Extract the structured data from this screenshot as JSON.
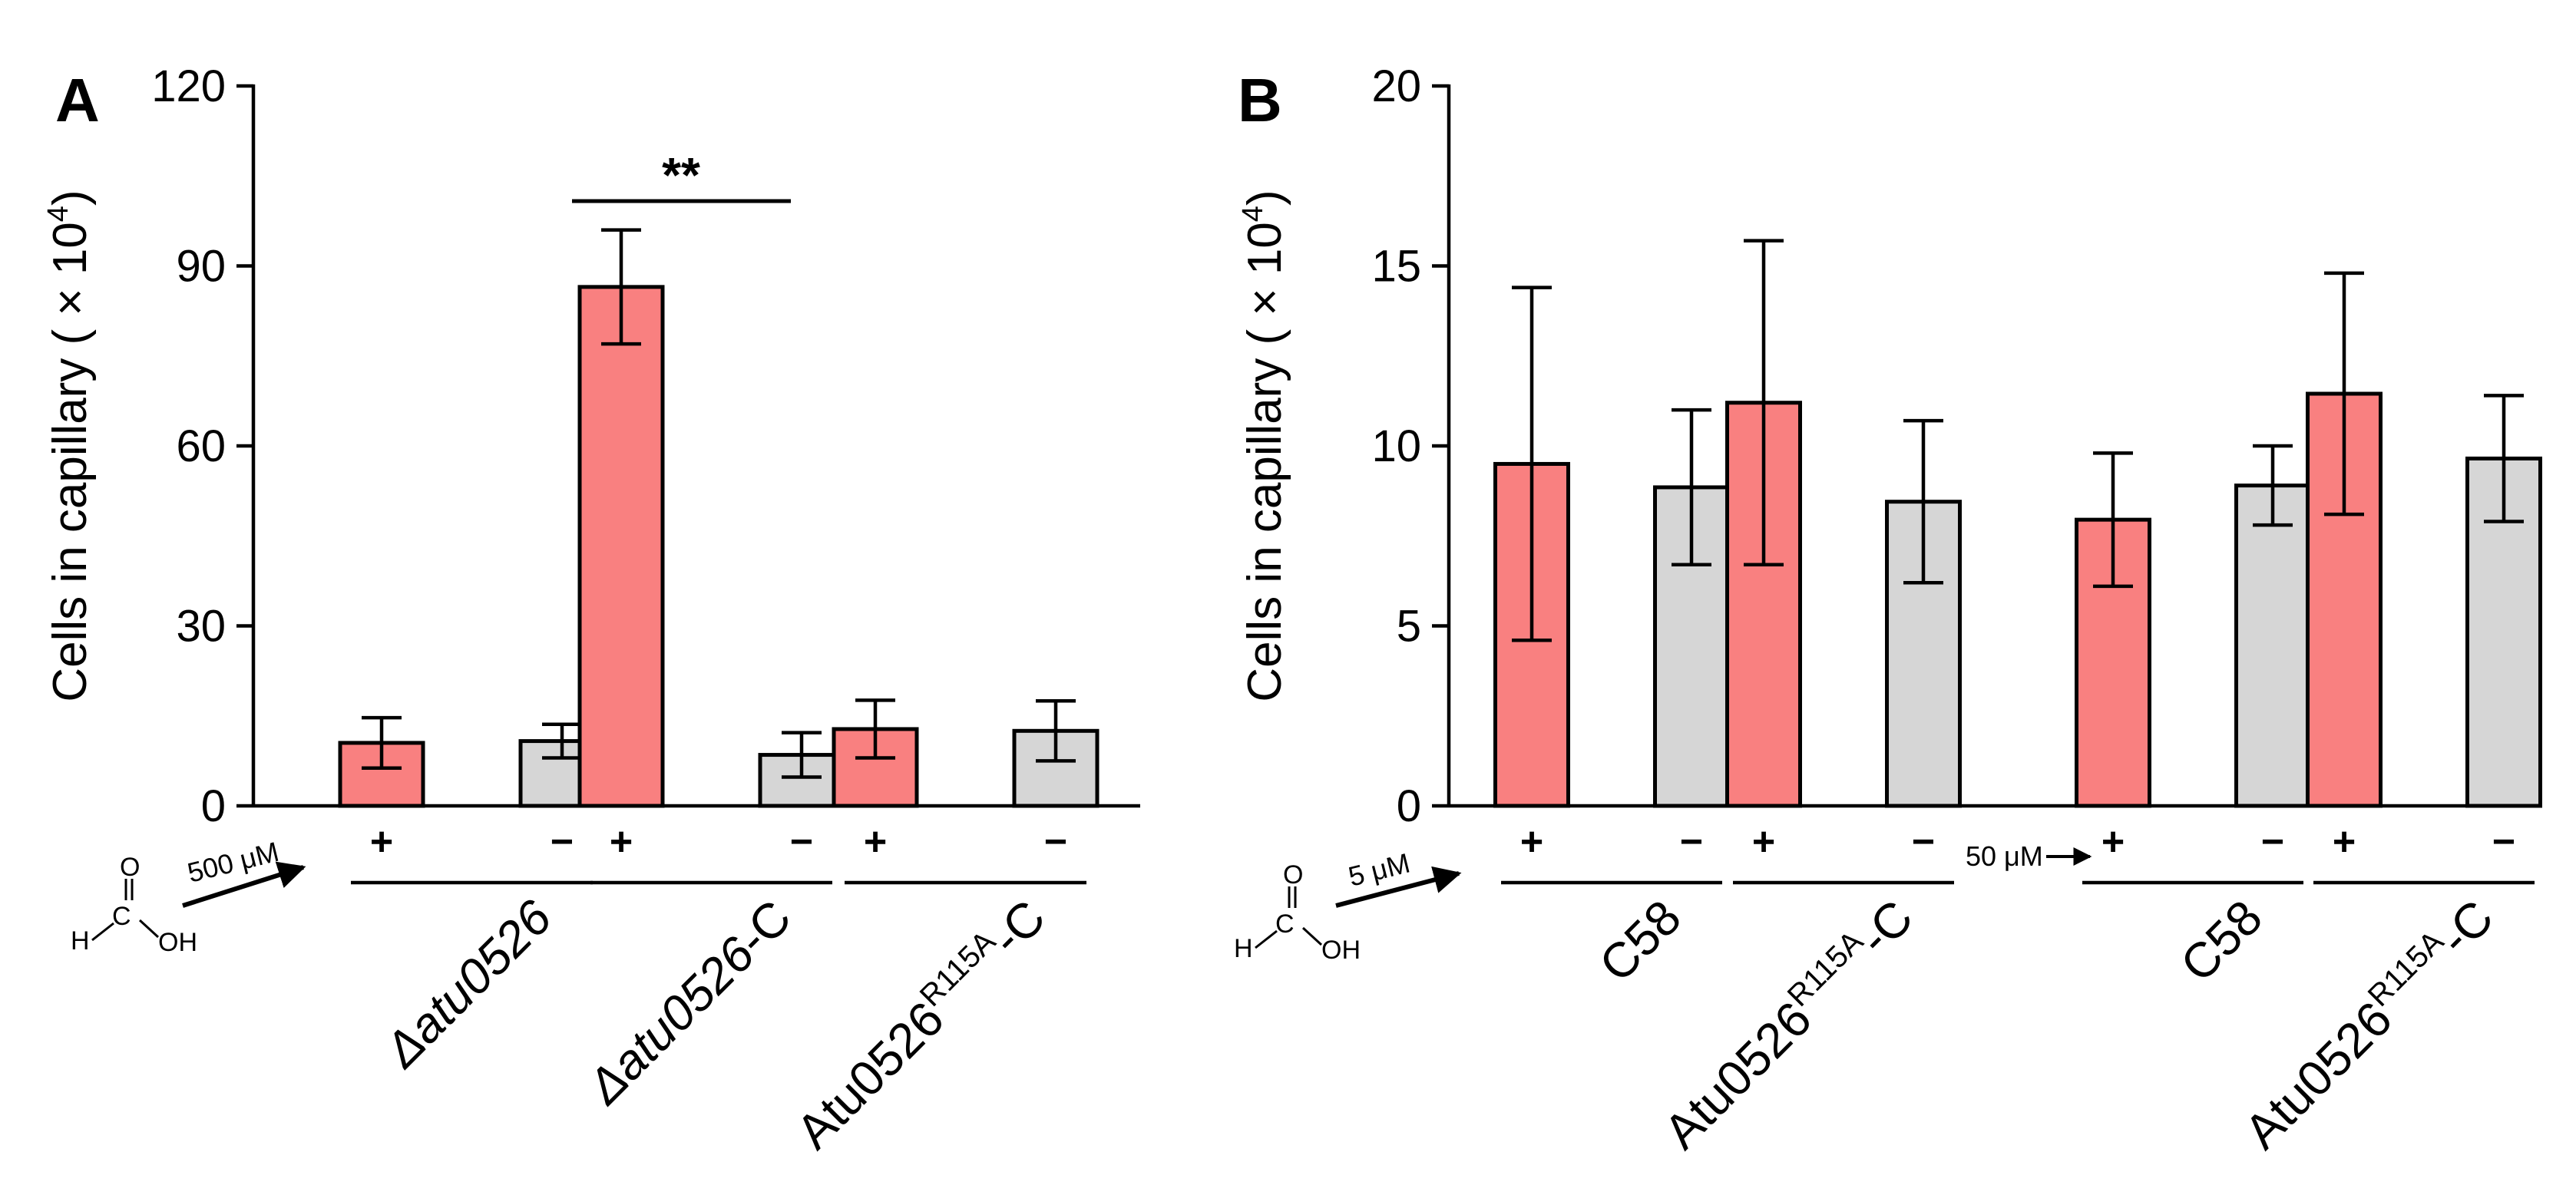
{
  "colors": {
    "treated": "#F98080",
    "control": "#D6D6D6",
    "ink": "#000000"
  },
  "molecule": {
    "h": "H",
    "c": "C",
    "o": "O",
    "oh": "OH"
  },
  "chart_data": [
    {
      "panel": "A",
      "type": "bar",
      "ylabel_main": "Cells in capillary ( × 10",
      "ylabel_sup": "4",
      "ylabel_tail": ")",
      "ylim": [
        0,
        120
      ],
      "yticks": [
        "0",
        "30",
        "60",
        "90",
        "120"
      ],
      "ytick_values": [
        0,
        30,
        60,
        90,
        120
      ],
      "concentration": "500 μM",
      "significance": "**",
      "groups": [
        {
          "label": "Δatu0526",
          "base": "Δatu0526",
          "sup": "",
          "suffix": "",
          "italic": true,
          "bars": [
            {
              "sign": "+",
              "value": 10.5,
              "err": 4.2,
              "kind": "treated"
            },
            {
              "sign": "−",
              "value": 10.8,
              "err": 2.8,
              "kind": "control"
            }
          ]
        },
        {
          "label": "Δatu0526-C",
          "base": "Δatu0526",
          "sup": "",
          "suffix": "-C",
          "italic": true,
          "bars": [
            {
              "sign": "+",
              "value": 86.5,
              "err": 9.5,
              "kind": "treated"
            },
            {
              "sign": "−",
              "value": 8.5,
              "err": 3.7,
              "kind": "control"
            }
          ]
        },
        {
          "label": "Atu0526R115A-C",
          "base": "Atu0526",
          "sup": "R115A",
          "suffix": "-C",
          "italic": false,
          "bars": [
            {
              "sign": "+",
              "value": 12.8,
              "err": 4.8,
              "kind": "treated"
            },
            {
              "sign": "−",
              "value": 12.5,
              "err": 5.0,
              "kind": "control"
            }
          ]
        }
      ]
    },
    {
      "panel": "B",
      "type": "bar",
      "ylabel_main": "Cells in capillary ( × 10",
      "ylabel_sup": "4",
      "ylabel_tail": ")",
      "ylim": [
        0,
        20
      ],
      "yticks": [
        "0",
        "5",
        "10",
        "15",
        "20"
      ],
      "ytick_values": [
        0,
        5,
        10,
        15,
        20
      ],
      "concentrations": [
        "5 μM",
        "50 μM"
      ],
      "groups": [
        {
          "label": "C58",
          "base": "C58",
          "sup": "",
          "suffix": "",
          "italic": false,
          "bars": [
            {
              "sign": "+",
              "value": 9.5,
              "err": 4.9,
              "kind": "treated"
            },
            {
              "sign": "−",
              "value": 8.85,
              "err": 2.15,
              "kind": "control"
            }
          ]
        },
        {
          "label": "Atu0526R115A-C",
          "base": "Atu0526",
          "sup": "R115A",
          "suffix": "-C",
          "italic": false,
          "bars": [
            {
              "sign": "+",
              "value": 11.2,
              "err": 4.5,
              "kind": "treated"
            },
            {
              "sign": "−",
              "value": 8.45,
              "err": 2.25,
              "kind": "control"
            }
          ]
        },
        {
          "label": "C58",
          "base": "C58",
          "sup": "",
          "suffix": "",
          "italic": false,
          "bars": [
            {
              "sign": "+",
              "value": 7.95,
              "err": 1.85,
              "kind": "treated"
            },
            {
              "sign": "−",
              "value": 8.9,
              "err": 1.1,
              "kind": "control"
            }
          ]
        },
        {
          "label": "Atu0526R115A-C",
          "base": "Atu0526",
          "sup": "R115A",
          "suffix": "-C",
          "italic": false,
          "bars": [
            {
              "sign": "+",
              "value": 11.45,
              "err": 3.35,
              "kind": "treated"
            },
            {
              "sign": "−",
              "value": 9.65,
              "err": 1.75,
              "kind": "control"
            }
          ]
        }
      ]
    }
  ]
}
